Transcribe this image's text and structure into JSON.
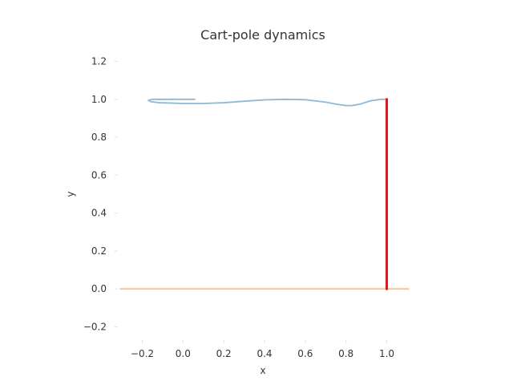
{
  "chart_data": {
    "type": "line",
    "title": "Cart-pole dynamics",
    "xlabel": "x",
    "ylabel": "y",
    "xlim": [
      -0.32,
      1.12
    ],
    "ylim": [
      -0.27,
      1.27
    ],
    "x_ticks": [
      -0.2,
      0.0,
      0.2,
      0.4,
      0.6,
      0.8,
      1.0
    ],
    "x_tick_labels": [
      "−0.2",
      "0.0",
      "0.2",
      "0.4",
      "0.6",
      "0.8",
      "1.0"
    ],
    "y_ticks": [
      -0.2,
      0.0,
      0.2,
      0.4,
      0.6,
      0.8,
      1.0,
      1.2
    ],
    "y_tick_labels": [
      "−0.2",
      "0.0",
      "0.2",
      "0.4",
      "0.6",
      "0.8",
      "1.0",
      "1.2"
    ],
    "grid": false,
    "colors": {
      "trajectory": "#8fb8d6",
      "track": "#f5c28e",
      "pole": "#e8141c",
      "text": "#333333"
    },
    "series": [
      {
        "kind": "line",
        "x": [
          0.06,
          0.03,
          0.0,
          -0.05,
          -0.1,
          -0.15,
          -0.17,
          -0.16,
          -0.12,
          -0.05,
          0.0,
          0.1,
          0.2,
          0.3,
          0.4,
          0.5,
          0.6,
          0.7,
          0.75,
          0.8,
          0.83,
          0.87,
          0.92,
          0.97,
          1.0
        ],
        "y": [
          1.0,
          1.0,
          1.0,
          1.0,
          1.0,
          1.0,
          0.995,
          0.988,
          0.982,
          0.98,
          0.978,
          0.978,
          0.982,
          0.99,
          0.997,
          1.0,
          0.998,
          0.985,
          0.975,
          0.967,
          0.967,
          0.975,
          0.992,
          1.0,
          1.0
        ]
      },
      {
        "kind": "track",
        "x": [
          -0.31,
          1.11
        ],
        "y": [
          0.0,
          0.0
        ]
      },
      {
        "kind": "pole",
        "x": [
          1.0,
          1.0
        ],
        "y": [
          0.0,
          1.0
        ]
      }
    ]
  }
}
